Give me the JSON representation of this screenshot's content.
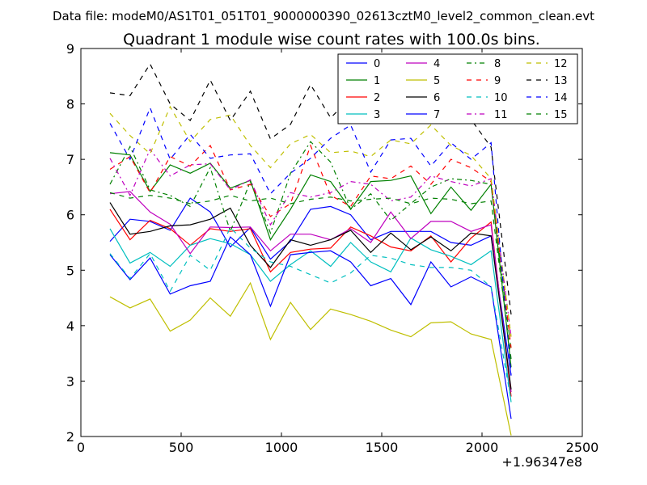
{
  "chart_data": {
    "type": "line",
    "file_label": "Data file: modeM0/AS1T01_051T01_9000000390_02613cztM0_level2_common_clean.evt",
    "title": "Quadrant 1 module wise count rates with 100.0s bins.",
    "xlabel": "",
    "ylabel": "",
    "x_offset_label": "+1.96347e8",
    "xlim": [
      0,
      2500
    ],
    "ylim": [
      2,
      9
    ],
    "xticks": [
      "0",
      "500",
      "1000",
      "1500",
      "2000",
      "2500"
    ],
    "yticks": [
      "2",
      "3",
      "4",
      "5",
      "6",
      "7",
      "8",
      "9"
    ],
    "legend_position": "upper-right",
    "x": [
      145,
      245,
      345,
      445,
      545,
      645,
      745,
      845,
      945,
      1045,
      1145,
      1245,
      1345,
      1445,
      1545,
      1645,
      1745,
      1845,
      1945,
      2045,
      2145
    ],
    "series": [
      {
        "name": "0",
        "color": "#0000ff",
        "style": "solid",
        "values": [
          5.52,
          5.92,
          5.88,
          5.72,
          6.3,
          6.05,
          5.42,
          5.77,
          5.2,
          5.52,
          6.1,
          6.15,
          6.0,
          5.55,
          5.7,
          5.7,
          5.7,
          5.5,
          5.45,
          5.62,
          3.1
        ]
      },
      {
        "name": "1",
        "color": "#008000",
        "style": "solid",
        "values": [
          7.12,
          7.08,
          6.42,
          6.9,
          6.75,
          6.93,
          6.48,
          6.62,
          5.55,
          6.1,
          6.72,
          6.6,
          6.1,
          6.6,
          6.62,
          6.7,
          6.02,
          6.5,
          6.08,
          6.55,
          3.25
        ]
      },
      {
        "name": "2",
        "color": "#ff0000",
        "style": "solid",
        "values": [
          6.1,
          5.55,
          5.9,
          5.75,
          5.45,
          5.75,
          5.7,
          5.75,
          4.97,
          5.32,
          5.38,
          5.4,
          5.78,
          5.62,
          5.42,
          5.35,
          5.62,
          5.15,
          5.58,
          5.87,
          2.72
        ]
      },
      {
        "name": "3",
        "color": "#00bfbf",
        "style": "solid",
        "values": [
          5.75,
          5.13,
          5.32,
          5.07,
          5.45,
          5.57,
          5.48,
          5.28,
          4.8,
          5.1,
          5.35,
          5.07,
          5.5,
          5.15,
          4.97,
          5.58,
          5.37,
          5.25,
          5.1,
          5.35,
          2.62
        ]
      },
      {
        "name": "4",
        "color": "#bf00bf",
        "style": "solid",
        "values": [
          6.38,
          6.42,
          6.05,
          5.83,
          5.3,
          5.78,
          5.77,
          5.78,
          5.35,
          5.65,
          5.65,
          5.55,
          5.75,
          5.5,
          6.05,
          5.57,
          5.88,
          5.88,
          5.7,
          5.82,
          2.8
        ]
      },
      {
        "name": "5",
        "color": "#bfbf00",
        "style": "solid",
        "values": [
          4.52,
          4.32,
          4.48,
          3.9,
          4.1,
          4.5,
          4.17,
          4.77,
          3.75,
          4.42,
          3.93,
          4.3,
          4.2,
          4.08,
          3.92,
          3.8,
          4.05,
          4.07,
          3.85,
          3.75,
          2.02
        ]
      },
      {
        "name": "6",
        "color": "#000000",
        "style": "solid",
        "values": [
          6.22,
          5.65,
          5.7,
          5.8,
          5.82,
          5.92,
          6.12,
          5.45,
          5.05,
          5.55,
          5.45,
          5.55,
          5.72,
          5.32,
          5.67,
          5.37,
          5.6,
          5.35,
          5.67,
          5.62,
          2.85
        ]
      },
      {
        "name": "7",
        "color": "#0000ff",
        "style": "solid",
        "values": [
          5.28,
          4.83,
          5.22,
          4.57,
          4.72,
          4.8,
          5.6,
          5.28,
          4.35,
          5.28,
          5.32,
          5.35,
          5.15,
          4.72,
          4.85,
          4.38,
          5.15,
          4.7,
          4.88,
          4.7,
          2.32
        ]
      },
      {
        "name": "8",
        "color": "#008000",
        "style": "dashdot",
        "values": [
          6.55,
          7.23,
          6.45,
          6.35,
          6.15,
          6.85,
          5.7,
          6.6,
          5.67,
          6.75,
          7.32,
          6.95,
          6.1,
          6.38,
          5.9,
          6.2,
          6.5,
          6.65,
          6.62,
          6.55,
          3.55
        ]
      },
      {
        "name": "9",
        "color": "#ff0000",
        "style": "dashed",
        "values": [
          6.82,
          7.05,
          6.4,
          7.05,
          6.88,
          7.25,
          6.45,
          6.55,
          5.97,
          6.2,
          7.25,
          6.35,
          6.15,
          6.7,
          6.65,
          6.88,
          6.55,
          7.0,
          6.85,
          6.6,
          3.6
        ]
      },
      {
        "name": "10",
        "color": "#00bfbf",
        "style": "dashed",
        "values": [
          5.3,
          4.85,
          5.3,
          4.62,
          5.27,
          5.0,
          5.77,
          5.4,
          5.15,
          5.07,
          4.92,
          4.77,
          4.95,
          5.27,
          5.22,
          5.1,
          5.05,
          5.05,
          5.0,
          4.7,
          2.65
        ]
      },
      {
        "name": "11",
        "color": "#bf00bf",
        "style": "dashdot",
        "values": [
          7.02,
          6.35,
          7.18,
          6.7,
          6.9,
          6.92,
          6.45,
          6.63,
          5.82,
          6.4,
          6.32,
          6.4,
          6.6,
          6.55,
          6.25,
          6.32,
          6.7,
          6.6,
          6.52,
          6.65,
          3.8
        ]
      },
      {
        "name": "12",
        "color": "#bfbf00",
        "style": "dashed",
        "values": [
          7.83,
          7.43,
          7.1,
          7.95,
          7.32,
          7.72,
          7.8,
          7.25,
          6.85,
          7.28,
          7.45,
          7.12,
          7.15,
          7.05,
          7.35,
          7.28,
          7.62,
          7.25,
          7.07,
          6.65,
          3.8
        ]
      },
      {
        "name": "13",
        "color": "#000000",
        "style": "dashed",
        "values": [
          8.2,
          8.15,
          8.72,
          8.0,
          7.7,
          8.43,
          7.7,
          8.23,
          7.37,
          7.63,
          8.35,
          7.75,
          8.1,
          7.73,
          8.07,
          8.1,
          8.2,
          7.88,
          7.72,
          7.22,
          4.2
        ]
      },
      {
        "name": "14",
        "color": "#0000ff",
        "style": "dashed",
        "values": [
          7.65,
          7.0,
          7.93,
          7.0,
          7.45,
          7.02,
          7.08,
          7.1,
          6.38,
          6.75,
          7.02,
          7.38,
          7.62,
          6.77,
          7.35,
          7.38,
          6.88,
          7.3,
          7.0,
          7.3,
          3.1
        ]
      },
      {
        "name": "15",
        "color": "#008000",
        "style": "dashed",
        "values": [
          6.4,
          6.3,
          6.35,
          6.3,
          6.2,
          6.25,
          6.35,
          6.25,
          6.3,
          6.2,
          6.28,
          6.32,
          6.25,
          6.28,
          6.3,
          6.2,
          6.3,
          6.28,
          6.2,
          6.25,
          3.4
        ]
      }
    ]
  }
}
